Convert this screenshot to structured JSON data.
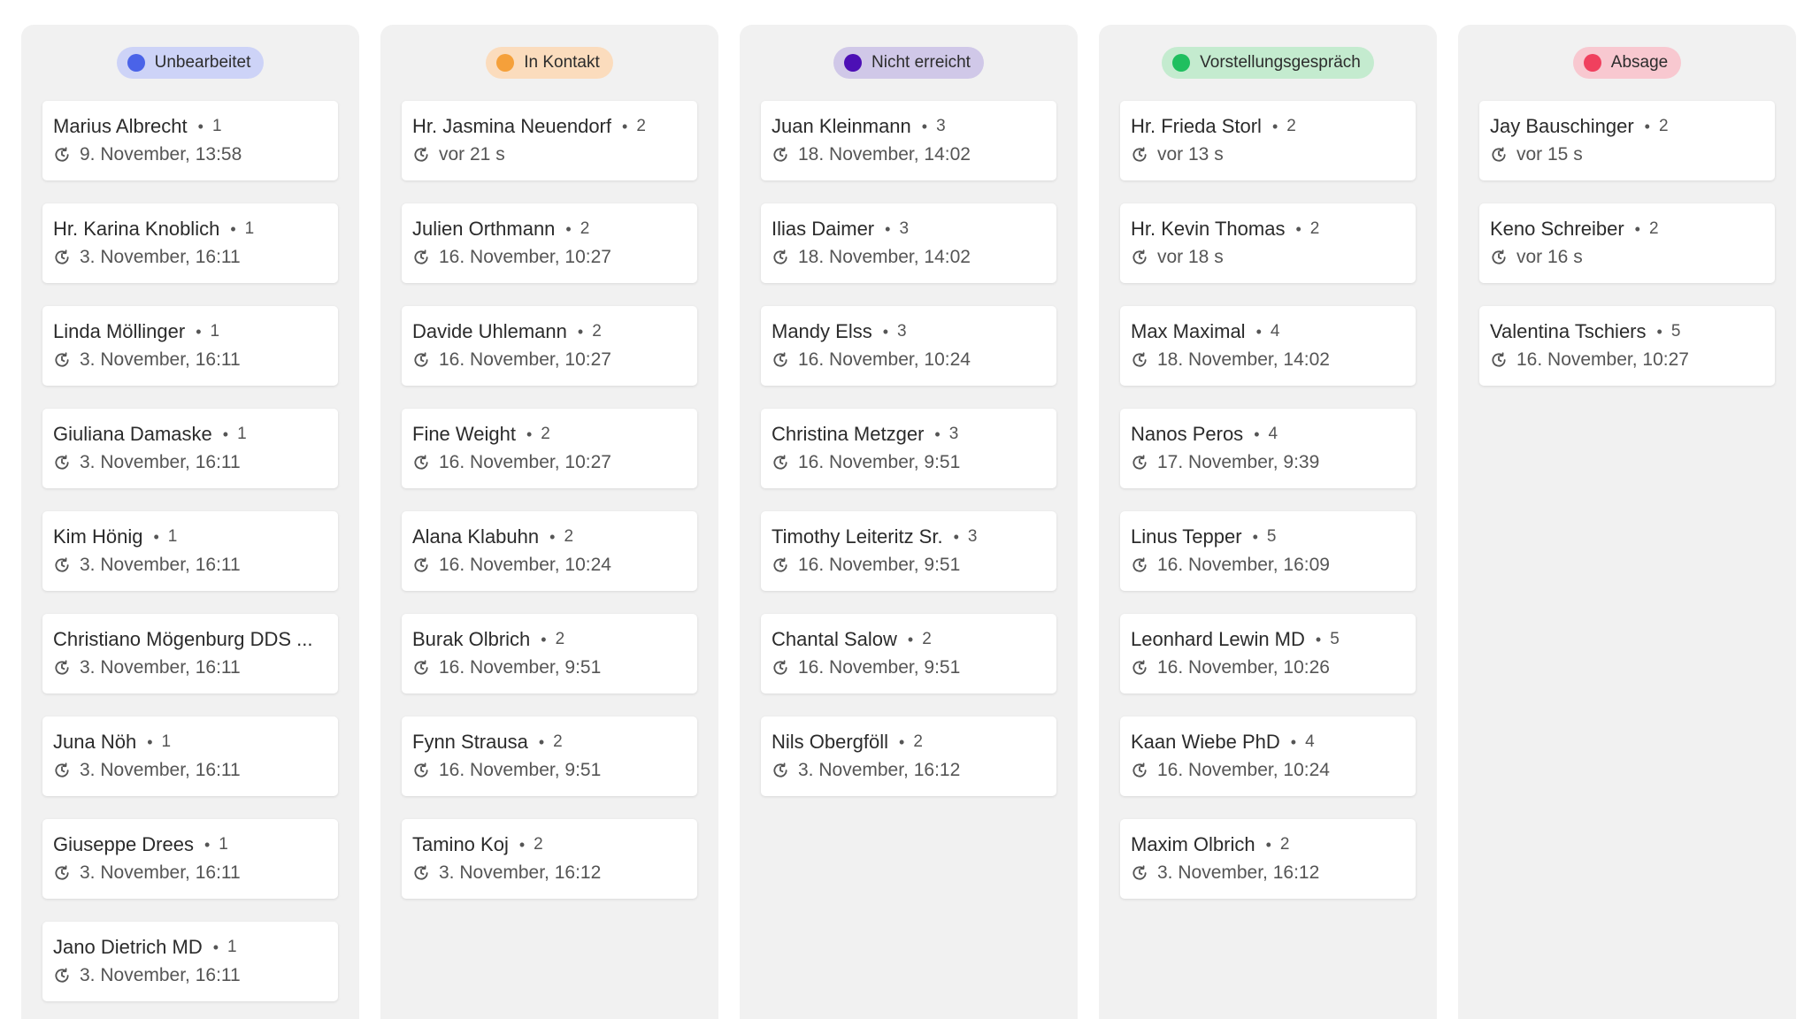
{
  "columns": [
    {
      "label": "Unbearbeitet",
      "color": "#4a63e8",
      "badge_bg": "#cdd3f7",
      "cards": [
        {
          "name": "Marius Albrecht",
          "count": "1",
          "time": "9. November, 13:58"
        },
        {
          "name": "Hr. Karina Knoblich",
          "count": "1",
          "time": "3. November, 16:11"
        },
        {
          "name": "Linda Möllinger",
          "count": "1",
          "time": "3. November, 16:11"
        },
        {
          "name": "Giuliana Damaske",
          "count": "1",
          "time": "3. November, 16:11"
        },
        {
          "name": "Kim Hönig",
          "count": "1",
          "time": "3. November, 16:11"
        },
        {
          "name": "Christiano Mögenburg DDS ...",
          "count": "",
          "time": "3. November, 16:11"
        },
        {
          "name": "Juna Nöh",
          "count": "1",
          "time": "3. November, 16:11"
        },
        {
          "name": "Giuseppe Drees",
          "count": "1",
          "time": "3. November, 16:11"
        },
        {
          "name": "Jano Dietrich MD",
          "count": "1",
          "time": "3. November, 16:11"
        }
      ]
    },
    {
      "label": "In Kontakt",
      "color": "#f5a03a",
      "badge_bg": "#fbdcbd",
      "cards": [
        {
          "name": "Hr. Jasmina Neuendorf",
          "count": "2",
          "time": "vor 21 s"
        },
        {
          "name": "Julien Orthmann",
          "count": "2",
          "time": "16. November, 10:27"
        },
        {
          "name": "Davide Uhlemann",
          "count": "2",
          "time": "16. November, 10:27"
        },
        {
          "name": "Fine Weight",
          "count": "2",
          "time": "16. November, 10:27"
        },
        {
          "name": "Alana Klabuhn",
          "count": "2",
          "time": "16. November, 10:24"
        },
        {
          "name": "Burak Olbrich",
          "count": "2",
          "time": "16. November, 9:51"
        },
        {
          "name": "Fynn Strausa",
          "count": "2",
          "time": "16. November, 9:51"
        },
        {
          "name": "Tamino Koj",
          "count": "2",
          "time": "3. November, 16:12"
        }
      ]
    },
    {
      "label": "Nicht erreicht",
      "color": "#4c0fb5",
      "badge_bg": "#d0c8e8",
      "cards": [
        {
          "name": "Juan Kleinmann",
          "count": "3",
          "time": "18. November, 14:02"
        },
        {
          "name": "Ilias Daimer",
          "count": "3",
          "time": "18. November, 14:02"
        },
        {
          "name": "Mandy Elss",
          "count": "3",
          "time": "16. November, 10:24"
        },
        {
          "name": "Christina Metzger",
          "count": "3",
          "time": "16. November, 9:51"
        },
        {
          "name": "Timothy Leiteritz Sr.",
          "count": "3",
          "time": "16. November, 9:51"
        },
        {
          "name": "Chantal Salow",
          "count": "2",
          "time": "16. November, 9:51"
        },
        {
          "name": "Nils Obergföll",
          "count": "2",
          "time": "3. November, 16:12"
        }
      ]
    },
    {
      "label": "Vorstellungsgespräch",
      "color": "#1fbf5f",
      "badge_bg": "#c4ebcf",
      "cards": [
        {
          "name": "Hr. Frieda Storl",
          "count": "2",
          "time": "vor 13 s"
        },
        {
          "name": "Hr. Kevin Thomas",
          "count": "2",
          "time": "vor 18 s"
        },
        {
          "name": "Max Maximal",
          "count": "4",
          "time": "18. November, 14:02"
        },
        {
          "name": "Nanos Peros",
          "count": "4",
          "time": "17. November, 9:39"
        },
        {
          "name": "Linus Tepper",
          "count": "5",
          "time": "16. November, 16:09"
        },
        {
          "name": "Leonhard Lewin MD",
          "count": "5",
          "time": "16. November, 10:26"
        },
        {
          "name": "Kaan Wiebe PhD",
          "count": "4",
          "time": "16. November, 10:24"
        },
        {
          "name": "Maxim Olbrich",
          "count": "2",
          "time": "3. November, 16:12"
        }
      ]
    },
    {
      "label": "Absage",
      "color": "#f0405e",
      "badge_bg": "#f8c8d0",
      "cards": [
        {
          "name": "Jay Bauschinger",
          "count": "2",
          "time": "vor 15 s"
        },
        {
          "name": "Keno Schreiber",
          "count": "2",
          "time": "vor 16 s"
        },
        {
          "name": "Valentina Tschiers",
          "count": "5",
          "time": "16. November, 10:27"
        }
      ]
    }
  ],
  "icons": {
    "card_time": "clock-refresh-icon",
    "status_dot": "status-dot-icon"
  }
}
